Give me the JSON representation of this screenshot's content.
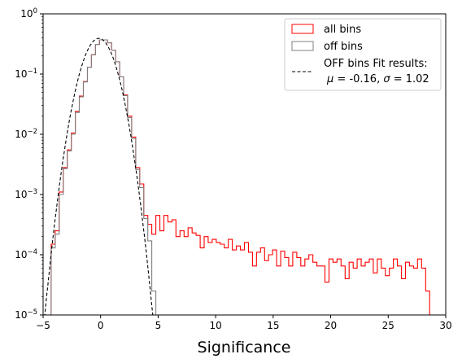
{
  "chart_data": {
    "type": "histogram",
    "title": "",
    "xlabel": "Significance",
    "ylabel": "",
    "xlim": [
      -5,
      30
    ],
    "ylim": [
      1e-05,
      1
    ],
    "yscale": "log",
    "grid": false,
    "legend_placement": "top-right",
    "x_ticks": [
      -5,
      0,
      5,
      10,
      15,
      20,
      25,
      30
    ],
    "x_tick_labels": [
      "−5",
      "0",
      "5",
      "10",
      "15",
      "20",
      "25",
      "30"
    ],
    "y_ticks": [
      1e-05,
      0.0001,
      0.001,
      0.01,
      0.1,
      1
    ],
    "y_tick_labels": [
      {
        "base": "10",
        "exp": "−5"
      },
      {
        "base": "10",
        "exp": "−4"
      },
      {
        "base": "10",
        "exp": "−3"
      },
      {
        "base": "10",
        "exp": "−2"
      },
      {
        "base": "10",
        "exp": "−1"
      },
      {
        "base": "10",
        "exp": "0"
      }
    ],
    "legend": {
      "all_bins": "all bins",
      "off_bins": "off bins",
      "fit_line1": "OFF bins Fit results:",
      "fit_line2_prefix": "μ",
      "fit_line2_mid": " = -0.16, ",
      "fit_line2_sigma": "σ",
      "fit_line2_end": " = 1.02"
    },
    "colors": {
      "all_bins": "#ff0000",
      "off_bins": "#808080",
      "fit": "#000000"
    },
    "fit": {
      "mu": -0.16,
      "sigma": 1.02
    },
    "series": [
      {
        "name": "all bins",
        "style": "step",
        "bin_width": 0.35,
        "points": [
          [
            -4.65,
            1e-05
          ],
          [
            -4.3,
            0.00015
          ],
          [
            -3.95,
            0.00025
          ],
          [
            -3.6,
            0.0011
          ],
          [
            -3.25,
            0.0028
          ],
          [
            -2.9,
            0.0055
          ],
          [
            -2.55,
            0.0105
          ],
          [
            -2.2,
            0.024
          ],
          [
            -1.85,
            0.043
          ],
          [
            -1.5,
            0.075
          ],
          [
            -1.15,
            0.13
          ],
          [
            -0.8,
            0.21
          ],
          [
            -0.45,
            0.31
          ],
          [
            -0.1,
            0.37
          ],
          [
            0.25,
            0.37
          ],
          [
            0.6,
            0.33
          ],
          [
            0.95,
            0.25
          ],
          [
            1.3,
            0.16
          ],
          [
            1.65,
            0.09
          ],
          [
            2.0,
            0.045
          ],
          [
            2.35,
            0.02
          ],
          [
            2.7,
            0.009
          ],
          [
            3.05,
            0.0028
          ],
          [
            3.4,
            0.0015
          ],
          [
            3.75,
            0.00045
          ],
          [
            4.1,
            0.00032
          ],
          [
            4.45,
            0.00022
          ],
          [
            4.8,
            0.00045
          ],
          [
            5.15,
            0.00025
          ],
          [
            5.5,
            0.00045
          ],
          [
            5.85,
            0.00035
          ],
          [
            6.2,
            0.00038
          ],
          [
            6.55,
            0.0002
          ],
          [
            6.9,
            0.00025
          ],
          [
            7.25,
            0.0002
          ],
          [
            7.6,
            0.00028
          ],
          [
            7.95,
            0.00023
          ],
          [
            8.3,
            0.00021
          ],
          [
            8.65,
            0.00013
          ],
          [
            9.0,
            0.0002
          ],
          [
            9.35,
            0.00016
          ],
          [
            9.7,
            0.00018
          ],
          [
            10.05,
            0.00016
          ],
          [
            10.4,
            0.00015
          ],
          [
            10.75,
            0.00013
          ],
          [
            11.1,
            0.00018
          ],
          [
            11.45,
            0.00012
          ],
          [
            11.8,
            0.00014
          ],
          [
            12.15,
            0.00012
          ],
          [
            12.5,
            0.00016
          ],
          [
            12.85,
            0.00011
          ],
          [
            13.2,
            6.5e-05
          ],
          [
            13.55,
            0.00011
          ],
          [
            13.9,
            0.00013
          ],
          [
            14.25,
            8e-05
          ],
          [
            14.6,
            0.0001
          ],
          [
            14.95,
            0.00012
          ],
          [
            15.3,
            6.5e-05
          ],
          [
            15.65,
            0.000115
          ],
          [
            16.0,
            9e-05
          ],
          [
            16.35,
            6.5e-05
          ],
          [
            16.7,
            0.00011
          ],
          [
            17.05,
            9e-05
          ],
          [
            17.4,
            6.5e-05
          ],
          [
            17.75,
            8.5e-05
          ],
          [
            18.1,
            0.0001
          ],
          [
            18.45,
            7.5e-05
          ],
          [
            18.8,
            6.5e-05
          ],
          [
            19.15,
            6.5e-05
          ],
          [
            19.5,
            3.5e-05
          ],
          [
            19.85,
            8.5e-05
          ],
          [
            20.2,
            7.5e-05
          ],
          [
            20.55,
            8.5e-05
          ],
          [
            20.9,
            6.5e-05
          ],
          [
            21.25,
            4e-05
          ],
          [
            21.6,
            7.5e-05
          ],
          [
            21.95,
            6e-05
          ],
          [
            22.3,
            8.5e-05
          ],
          [
            22.65,
            6.5e-05
          ],
          [
            23.0,
            7.5e-05
          ],
          [
            23.35,
            8.5e-05
          ],
          [
            23.7,
            5e-05
          ],
          [
            24.05,
            8.5e-05
          ],
          [
            24.4,
            6e-05
          ],
          [
            24.75,
            4.5e-05
          ],
          [
            25.1,
            6e-05
          ],
          [
            25.45,
            8.5e-05
          ],
          [
            25.8,
            6.5e-05
          ],
          [
            26.15,
            4e-05
          ],
          [
            26.5,
            7.5e-05
          ],
          [
            26.85,
            6.5e-05
          ],
          [
            27.2,
            6e-05
          ],
          [
            27.55,
            8.5e-05
          ],
          [
            27.9,
            6e-05
          ],
          [
            28.25,
            2.5e-05
          ],
          [
            28.6,
            1e-05
          ]
        ]
      },
      {
        "name": "off bins",
        "style": "step",
        "bin_width": 0.35,
        "points": [
          [
            -4.65,
            1e-05
          ],
          [
            -4.3,
            0.00013
          ],
          [
            -3.95,
            0.00022
          ],
          [
            -3.6,
            0.001
          ],
          [
            -3.25,
            0.0027
          ],
          [
            -2.9,
            0.0053
          ],
          [
            -2.55,
            0.01
          ],
          [
            -2.2,
            0.023
          ],
          [
            -1.85,
            0.042
          ],
          [
            -1.5,
            0.074
          ],
          [
            -1.15,
            0.13
          ],
          [
            -0.8,
            0.21
          ],
          [
            -0.45,
            0.31
          ],
          [
            -0.1,
            0.37
          ],
          [
            0.25,
            0.37
          ],
          [
            0.6,
            0.33
          ],
          [
            0.95,
            0.25
          ],
          [
            1.3,
            0.16
          ],
          [
            1.65,
            0.09
          ],
          [
            2.0,
            0.044
          ],
          [
            2.35,
            0.019
          ],
          [
            2.7,
            0.0085
          ],
          [
            3.05,
            0.0026
          ],
          [
            3.4,
            0.0013
          ],
          [
            3.75,
            0.0004
          ],
          [
            4.1,
            0.00017
          ],
          [
            4.45,
            2.5e-05
          ],
          [
            4.8,
            1e-05
          ]
        ]
      }
    ]
  }
}
